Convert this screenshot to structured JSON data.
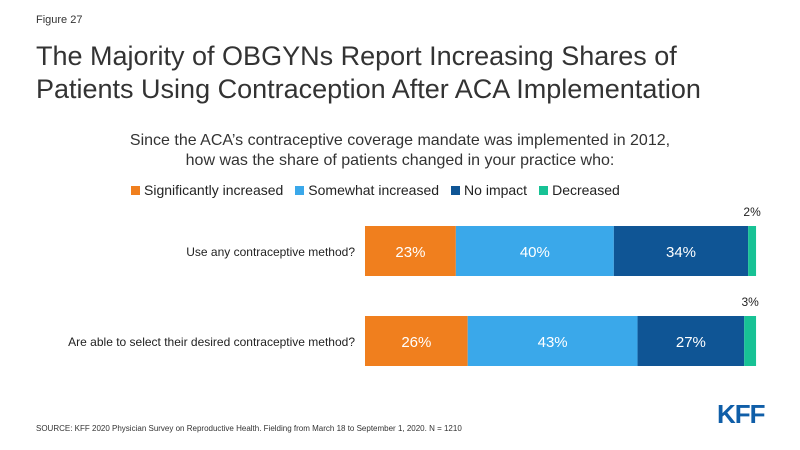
{
  "figure_label": "Figure 27",
  "title_lines": [
    "The Majority of OBGYNs Report Increasing Shares of",
    "Patients Using Contraception After ACA Implementation"
  ],
  "subtitle_lines": [
    "Since the ACA’s contraceptive coverage mandate was implemented in 2012,",
    "how was the share of patients changed in your practice who:"
  ],
  "source": "SOURCE: KFF 2020 Physician Survey on Reproductive Health. Fielding from March 18 to September 1, 2020. N = 1210",
  "logo": "KFF",
  "chart_data": {
    "type": "bar",
    "orientation": "horizontal",
    "stacked": true,
    "categories": [
      "Use any contraceptive method?",
      "Are able to select their desired contraceptive method?"
    ],
    "series": [
      {
        "name": "Significantly increased",
        "values": [
          23,
          26
        ],
        "labels": [
          "23%",
          "26%"
        ],
        "color": "#f07f1e"
      },
      {
        "name": "Somewhat increased",
        "values": [
          40,
          43
        ],
        "labels": [
          "40%",
          "43%"
        ],
        "color": "#3aa8ea"
      },
      {
        "name": "No impact",
        "values": [
          34,
          27
        ],
        "labels": [
          "34%",
          "27%"
        ],
        "color": "#0f5595"
      },
      {
        "name": "Decreased",
        "values": [
          2,
          3
        ],
        "labels": [
          "2%",
          "3%"
        ],
        "color": "#17c295"
      }
    ],
    "xlim": [
      0,
      100
    ],
    "legend_position": "top",
    "grid": false
  }
}
